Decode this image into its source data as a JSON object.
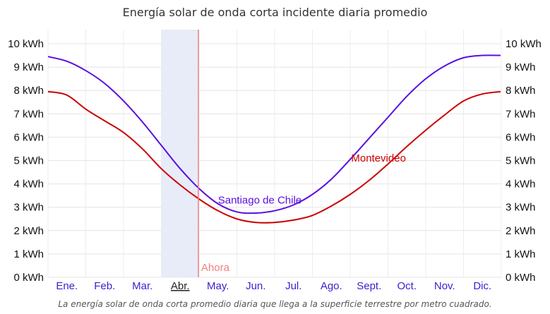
{
  "chart_data": {
    "type": "line",
    "title": "Energía solar de onda corta incidente diaria promedio",
    "caption": "La energía solar de onda corta promedio diaria que llega a la superficie terrestre por metro cuadrado.",
    "ylim": [
      0,
      10
    ],
    "y_ticks": [
      "0 kWh",
      "1 kWh",
      "2 kWh",
      "3 kWh",
      "4 kWh",
      "5 kWh",
      "6 kWh",
      "7 kWh",
      "8 kWh",
      "9 kWh",
      "10 kWh"
    ],
    "categories": [
      "Ene.",
      "Feb.",
      "Mar.",
      "Abr.",
      "May.",
      "Jun.",
      "Jul.",
      "Ago.",
      "Sept.",
      "Oct.",
      "Nov.",
      "Dic."
    ],
    "current_month_index": 3,
    "grid": true,
    "highlight": {
      "from_month": 3.0,
      "to_month": 4.0
    },
    "now_marker": {
      "label": "Ahora",
      "month": 3.98
    },
    "series": [
      {
        "name": "Santiago de Chile",
        "color": "#5a0fe0",
        "label_at_month": 4.35,
        "x": [
          0,
          0.5,
          1,
          1.5,
          2,
          2.5,
          3,
          3.5,
          4,
          4.5,
          5,
          5.5,
          6,
          6.5,
          7,
          7.5,
          8,
          8.5,
          9,
          9.5,
          10,
          10.5,
          11,
          11.5,
          11.98
        ],
        "values": [
          9.45,
          9.25,
          8.85,
          8.3,
          7.55,
          6.65,
          5.65,
          4.65,
          3.8,
          3.15,
          2.8,
          2.75,
          2.85,
          3.1,
          3.55,
          4.2,
          5.05,
          5.95,
          6.85,
          7.75,
          8.5,
          9.05,
          9.4,
          9.5,
          9.5
        ]
      },
      {
        "name": "Montevideo",
        "color": "#cc0000",
        "label_at_month": 8.9,
        "x": [
          0,
          0.5,
          1,
          1.5,
          2,
          2.5,
          3,
          3.5,
          4,
          4.5,
          5,
          5.5,
          6,
          6.5,
          7,
          7.5,
          8,
          8.5,
          9,
          9.5,
          10,
          10.5,
          11,
          11.5,
          11.98
        ],
        "values": [
          7.95,
          7.8,
          7.2,
          6.7,
          6.2,
          5.5,
          4.65,
          3.95,
          3.35,
          2.85,
          2.5,
          2.35,
          2.35,
          2.45,
          2.65,
          3.05,
          3.55,
          4.15,
          4.85,
          5.6,
          6.3,
          6.95,
          7.55,
          7.85,
          7.95
        ]
      }
    ]
  }
}
